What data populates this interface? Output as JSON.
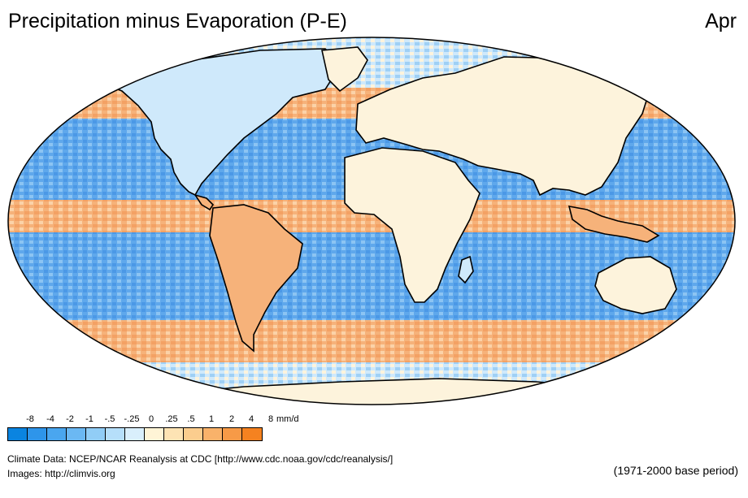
{
  "title": "Precipitation minus Evaporation (P-E)",
  "month": "Apr",
  "legend": {
    "ticks": [
      "-8",
      "-4",
      "-2",
      "-1",
      "-.5",
      "-.25",
      "0",
      ".25",
      ".5",
      "1",
      "2",
      "4",
      "8"
    ],
    "unit": "mm/d",
    "colors": [
      "#0a84e0",
      "#2e95ea",
      "#4aa6ef",
      "#6bb8f3",
      "#91cdf6",
      "#b6dffa",
      "#d9effc",
      "#fff4d6",
      "#fde3b4",
      "#fbcd8e",
      "#f9b26a",
      "#f79a47",
      "#f58220"
    ]
  },
  "credits": {
    "data": "Climate Data:  NCEP/NCAR Reanalysis at CDC [http://www.cdc.noaa.gov/cdc/reanalysis/]",
    "images": "Images:  http://climvis.org",
    "base_period": "(1971-2000 base period)"
  },
  "map_colors": {
    "ocean_wet": "#5fa8ec",
    "dry_orange": "#f6b27a",
    "light_blue": "#cfe9fb",
    "cream": "#fdf3dc",
    "outline": "#000000"
  }
}
